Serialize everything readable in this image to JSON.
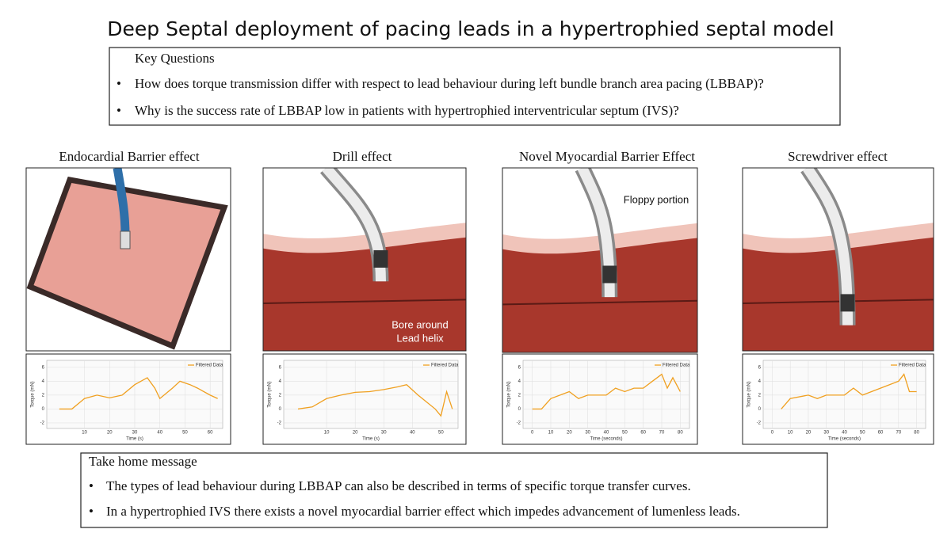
{
  "title": "Deep Septal deployment of pacing leads in a hypertrophied  septal model",
  "key_questions": {
    "heading": "Key Questions",
    "items": [
      "How does torque transmission differ with respect to lead behaviour during left bundle branch area pacing (LBBAP)?",
      "Why is the success rate of LBBAP low in patients with hypertrophied interventricular septum (IVS)?"
    ]
  },
  "panels": [
    {
      "label": "Endocardial Barrier effect",
      "chart": {
        "type": "line",
        "x": [
          0,
          5,
          10,
          15,
          20,
          25,
          30,
          35,
          38,
          40,
          45,
          48,
          52,
          55,
          60,
          63
        ],
        "values": [
          0,
          0,
          1.5,
          2,
          1.6,
          2,
          3.5,
          4.5,
          3,
          1.5,
          3,
          4,
          3.5,
          3,
          2,
          1.5
        ],
        "color": "#f0a020",
        "xlim": [
          -5,
          65
        ],
        "ylim": [
          -2.8,
          7
        ],
        "xticks": [
          10,
          20,
          30,
          40,
          50,
          60
        ],
        "yticks": [
          -2,
          0,
          2,
          4,
          6
        ],
        "xlabel": "Time (s)",
        "ylabel": "Torque (mN)",
        "legend": "Filtered Data"
      }
    },
    {
      "label": "Drill effect",
      "annotation": [
        "Bore around",
        "Lead helix"
      ],
      "chart": {
        "type": "line",
        "x": [
          0,
          5,
          10,
          15,
          20,
          25,
          30,
          35,
          38,
          42,
          45,
          48,
          50,
          52,
          54
        ],
        "values": [
          0,
          0.3,
          1.5,
          2,
          2.4,
          2.5,
          2.8,
          3.2,
          3.5,
          2,
          1,
          0,
          -1,
          2.5,
          0
        ],
        "color": "#f0a020",
        "xlim": [
          -5,
          56
        ],
        "ylim": [
          -2.8,
          7
        ],
        "xticks": [
          10,
          20,
          30,
          40,
          50
        ],
        "yticks": [
          -2,
          0,
          2,
          4,
          6
        ],
        "xlabel": "Time (s)",
        "ylabel": "Torque (mN)",
        "legend": "Filtered Data"
      }
    },
    {
      "label": "Novel Myocardial Barrier Effect",
      "annotation": [
        "Floppy portion"
      ],
      "chart": {
        "type": "line",
        "x": [
          0,
          5,
          10,
          20,
          25,
          30,
          40,
          45,
          50,
          55,
          60,
          65,
          70,
          73,
          76,
          80
        ],
        "values": [
          0,
          0,
          1.5,
          2.5,
          1.5,
          2,
          2,
          3,
          2.5,
          3,
          3,
          4,
          5,
          3,
          4.5,
          2.5
        ],
        "color": "#f0a020",
        "xlim": [
          -5,
          85
        ],
        "ylim": [
          -2.8,
          7
        ],
        "xticks": [
          0,
          10,
          20,
          30,
          40,
          50,
          60,
          70,
          80
        ],
        "yticks": [
          -2,
          0,
          2,
          4,
          6
        ],
        "xlabel": "Time (seconds)",
        "ylabel": "Torque (mN)",
        "legend": "Filtered Data"
      }
    },
    {
      "label": "Screwdriver effect",
      "chart": {
        "type": "line",
        "x": [
          5,
          10,
          20,
          25,
          30,
          40,
          45,
          50,
          55,
          60,
          65,
          70,
          73,
          76,
          80
        ],
        "values": [
          0,
          1.5,
          2,
          1.5,
          2,
          2,
          3,
          2,
          2.5,
          3,
          3.5,
          4,
          5,
          2.5,
          2.5
        ],
        "color": "#f0a020",
        "xlim": [
          -5,
          85
        ],
        "ylim": [
          -2.8,
          7
        ],
        "xticks": [
          0,
          10,
          20,
          30,
          40,
          50,
          60,
          70,
          80
        ],
        "yticks": [
          -2,
          0,
          2,
          4,
          6
        ],
        "xlabel": "Time (seconds)",
        "ylabel": "Torque (mN)",
        "legend": "Filtered Data"
      }
    }
  ],
  "take_home": {
    "heading": "Take home message",
    "items": [
      "The types of lead behaviour during LBBAP can also  be described in terms of specific torque transfer curves.",
      "In a hypertrophied IVS there exists a novel myocardial barrier effect which impedes advancement of lumenless leads."
    ]
  }
}
